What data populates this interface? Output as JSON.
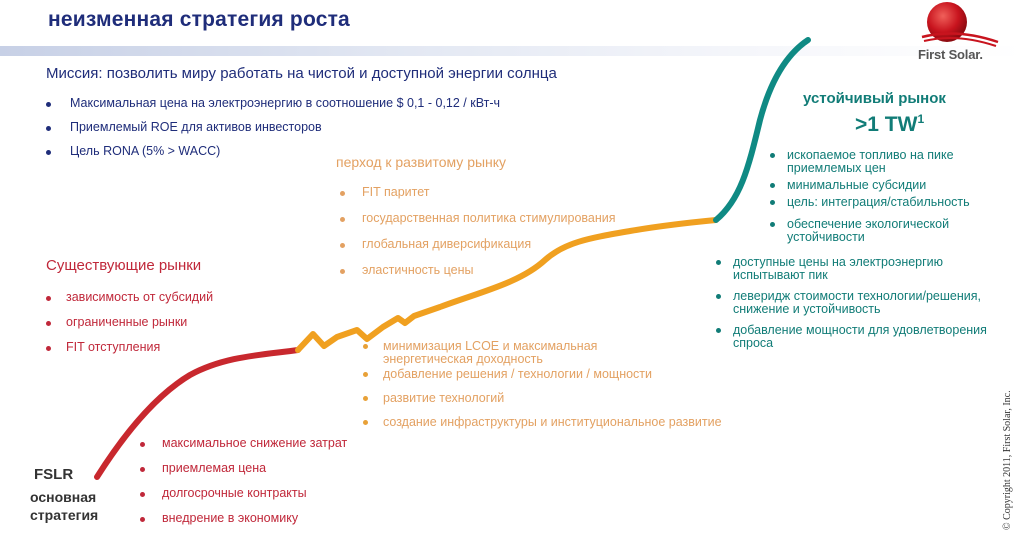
{
  "title": "неизменная стратегия роста",
  "logo": {
    "text": "First Solar."
  },
  "mission": "Миссия: позволить миру работать на чистой и доступной энергии солнца",
  "mission_bullets": [
    "Максимальная цена на электроэнергию в соотношение $ 0,1 - 0,12 / кВт-ч",
    "Приемлемый ROE для активов инвесторов",
    "Цель RONA (5% > WACC)"
  ],
  "existing_markets": {
    "heading": "Существующие рынки",
    "items": [
      "зависимость от субсидий",
      "ограниченные рынки",
      "FIT отступления"
    ]
  },
  "transition": {
    "heading": "перход к развитому рынку",
    "items": [
      "FIT паритет",
      "государственная политика стимулирования",
      "глобальная диверсификация",
      "эластичность цены"
    ]
  },
  "transition_actions": [
    "минимизация LCOE и максимальная энергетическая доходность",
    "добавление решения / технологии / мощности",
    "развитие технологий",
    "создание инфраструктуры и институциональное развитие"
  ],
  "sustainable": {
    "heading": "устойчивый рынок",
    "target": ">1 TW",
    "target_sup": "1",
    "items": [
      "ископаемое топливо на пике приемлемых цен",
      "минимальные субсидии",
      "цель: интеграция/стабильность",
      "обеспечение экологической устойчивости"
    ]
  },
  "sustainable_actions": [
    "доступные цены на электроэнергию испытывают пик",
    "леверидж стоимости технологии/решения, снижение и устойчивость",
    "добавление мощности для удовлетворения спроса"
  ],
  "core_strategy": {
    "ticker": "FSLR",
    "label_line1": "основная",
    "label_line2": "стратегия",
    "items": [
      "максимальное снижение затрат",
      "приемлемая цена",
      "долгосрочные контракты",
      "внедрение в экономику"
    ]
  },
  "copyright": "© Copyright 2011, First Solar, Inc.",
  "colors": {
    "title": "#1f2d7a",
    "red": "#c0283a",
    "orange": "#e8a138",
    "orange_text": "#e3a162",
    "teal": "#117c77"
  }
}
